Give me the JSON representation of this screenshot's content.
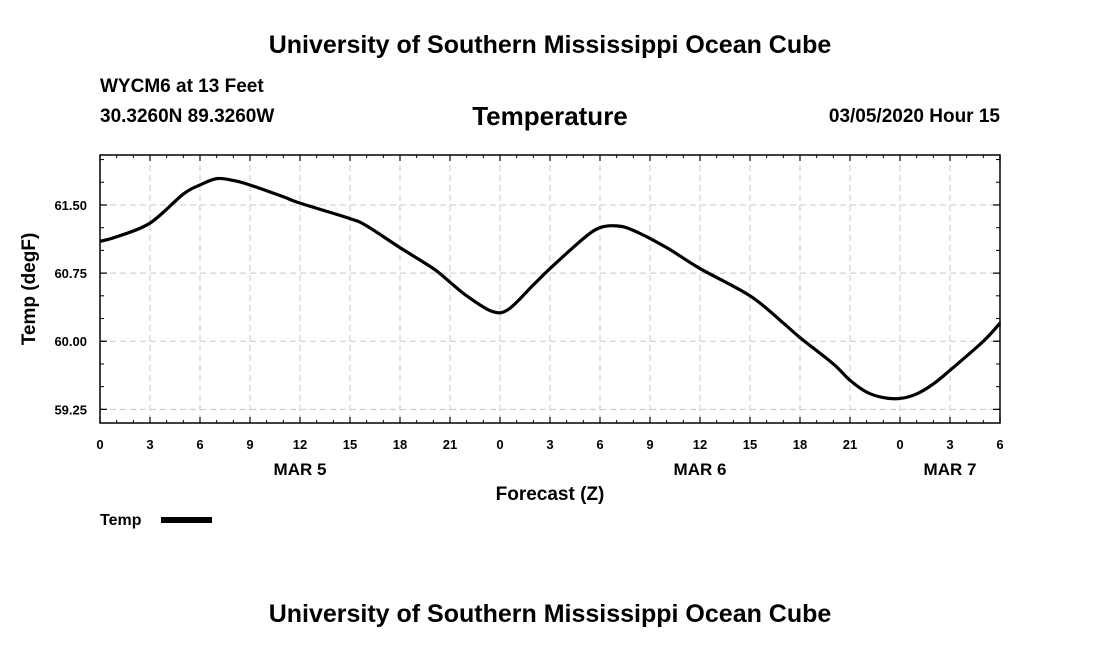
{
  "header": {
    "title": "University of Southern Mississippi Ocean Cube",
    "station": "WYCM6 at 13 Feet",
    "coordinates": "30.3260N 89.3260W",
    "datetime": "03/05/2020 Hour 15"
  },
  "footer": {
    "title": "University of Southern Mississippi Ocean Cube"
  },
  "chart_data": {
    "type": "line",
    "title": "Temperature",
    "xlabel": "Forecast (Z)",
    "ylabel": "Temp (degF)",
    "x_range_hours": [
      0,
      54
    ],
    "ylim": [
      59.1,
      62.05
    ],
    "y_ticks": [
      59.25,
      60.0,
      60.75,
      61.5
    ],
    "y_tick_labels": [
      "59.25",
      "60.00",
      "60.75",
      "61.50"
    ],
    "x_ticks_hours": [
      0,
      3,
      6,
      9,
      12,
      15,
      18,
      21,
      24,
      27,
      30,
      33,
      36,
      39,
      42,
      45,
      48,
      51,
      54
    ],
    "x_tick_labels": [
      "0",
      "3",
      "6",
      "9",
      "12",
      "15",
      "18",
      "21",
      "0",
      "3",
      "6",
      "9",
      "12",
      "15",
      "18",
      "21",
      "0",
      "3",
      "6"
    ],
    "date_labels": [
      {
        "hour": 12,
        "label": "MAR 5"
      },
      {
        "hour": 36,
        "label": "MAR 6"
      },
      {
        "hour": 51,
        "label": "MAR 7"
      }
    ],
    "grid": true,
    "legend": {
      "position": "bottom-left",
      "entries": [
        "Temp"
      ]
    },
    "series": [
      {
        "name": "Temp",
        "color": "#000000",
        "x": [
          0,
          1,
          3,
          5,
          6,
          7,
          8,
          9,
          11,
          12,
          15,
          16,
          18,
          20,
          21,
          22,
          23.5,
          24.5,
          26,
          27,
          29,
          30,
          31,
          32,
          34,
          36,
          39,
          41,
          42,
          44,
          45,
          46,
          47,
          48,
          49,
          50,
          51,
          53,
          54
        ],
        "values": [
          61.1,
          61.15,
          61.3,
          61.62,
          61.72,
          61.79,
          61.77,
          61.72,
          61.59,
          61.52,
          61.35,
          61.27,
          61.03,
          60.8,
          60.65,
          60.5,
          60.33,
          60.35,
          60.62,
          60.8,
          61.13,
          61.25,
          61.27,
          61.22,
          61.03,
          60.8,
          60.5,
          60.2,
          60.04,
          59.75,
          59.57,
          59.44,
          59.38,
          59.37,
          59.42,
          59.53,
          59.68,
          60.0,
          60.2
        ]
      }
    ]
  }
}
